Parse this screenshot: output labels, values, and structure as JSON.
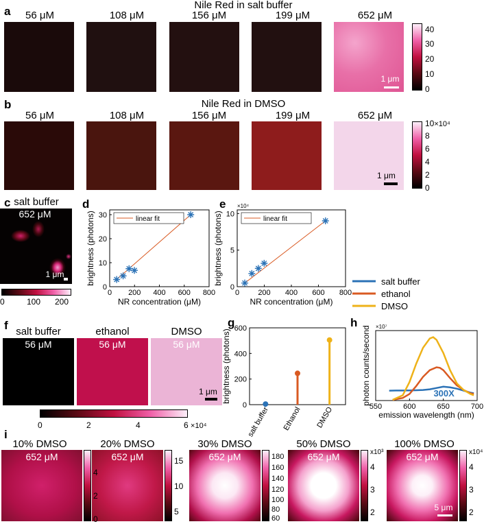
{
  "panels": {
    "a": {
      "label": "a",
      "title": "Nile Red in salt buffer",
      "conc": [
        "56 μM",
        "108 μM",
        "156 μM",
        "199 μM",
        "652 μM"
      ],
      "scalebar": "1 μm",
      "cbar_ticks": [
        "40",
        "30",
        "20",
        "10",
        "0"
      ]
    },
    "b": {
      "label": "b",
      "title": "Nile Red in DMSO",
      "conc": [
        "56 μM",
        "108 μM",
        "156 μM",
        "199 μM",
        "652 μM"
      ],
      "scalebar": "1 μm",
      "cbar_ticks": [
        "10",
        "8",
        "6",
        "4",
        "2",
        "0"
      ],
      "cbar_exp": "×10⁴"
    },
    "c": {
      "label": "c",
      "title": "salt buffer",
      "conc": "652 μM",
      "scalebar": "1 μm",
      "cbar_ticks": [
        "0",
        "100",
        "200"
      ]
    },
    "f": {
      "label": "f",
      "titles": [
        "salt buffer",
        "ethanol",
        "DMSO"
      ],
      "conc": [
        "56 μM",
        "56 μM",
        "56 μM"
      ],
      "scalebar": "1 μm",
      "cbar_ticks": [
        "0",
        "2",
        "4",
        "6"
      ],
      "cbar_exp": "×10⁴"
    },
    "i": {
      "label": "i",
      "titles": [
        "10% DMSO",
        "20% DMSO",
        "30% DMSO",
        "50% DMSO",
        "100% DMSO"
      ],
      "conc": [
        "652 μM",
        "652 μM",
        "652 μM",
        "652 μM",
        "652 μM"
      ],
      "scalebar": "5 μm",
      "cbars": [
        {
          "ticks": [
            "4",
            "2",
            "0"
          ],
          "exp": ""
        },
        {
          "ticks": [
            "15",
            "10",
            "5"
          ],
          "exp": ""
        },
        {
          "ticks": [
            "180",
            "160",
            "140",
            "120",
            "100",
            "80",
            "60"
          ],
          "exp": ""
        },
        {
          "ticks": [
            "4",
            "3",
            "2"
          ],
          "exp": "x10³"
        },
        {
          "ticks": [
            "4",
            "3",
            "2"
          ],
          "exp": "x10⁴"
        }
      ]
    }
  },
  "chart_data": [
    {
      "id": "d",
      "type": "scatter",
      "label": "d",
      "xlabel": "NR concentration (μM)",
      "ylabel": "brightness (photons)",
      "xlim": [
        0,
        800
      ],
      "ylim": [
        0,
        32
      ],
      "xticks": [
        0,
        200,
        400,
        600,
        800
      ],
      "yticks": [
        0,
        10,
        20,
        30
      ],
      "points": [
        [
          56,
          3
        ],
        [
          108,
          4.5
        ],
        [
          156,
          7.5
        ],
        [
          199,
          6.8
        ],
        [
          652,
          30
        ]
      ],
      "fit": [
        [
          56,
          3
        ],
        [
          652,
          30
        ]
      ],
      "legend": "linear fit"
    },
    {
      "id": "e",
      "type": "scatter",
      "label": "e",
      "xlabel": "NR concentration (μM)",
      "ylabel": "brightness (photons)",
      "exp": "×10⁴",
      "xlim": [
        0,
        800
      ],
      "ylim": [
        0,
        10.5
      ],
      "xticks": [
        0,
        200,
        400,
        600,
        800
      ],
      "yticks": [
        0,
        5,
        10
      ],
      "points": [
        [
          56,
          0.5
        ],
        [
          108,
          1.8
        ],
        [
          156,
          2.5
        ],
        [
          199,
          3.2
        ],
        [
          652,
          9
        ]
      ],
      "fit": [
        [
          56,
          0.5
        ],
        [
          652,
          9
        ]
      ],
      "legend": "linear fit"
    },
    {
      "id": "g",
      "type": "bar",
      "label": "g",
      "ylabel": "brightness (photons)",
      "categories": [
        "salt buffer",
        "Ethanol",
        "DMSO"
      ],
      "values": [
        5,
        245,
        505
      ],
      "colors": [
        "#2b72b6",
        "#d95a22",
        "#eeb219"
      ],
      "ylim": [
        0,
        600
      ],
      "yticks": [
        0,
        200,
        400,
        600
      ]
    },
    {
      "id": "h",
      "type": "line",
      "label": "h",
      "xlabel": "emission wavelength (nm)",
      "ylabel": "photon counts/second",
      "exp": "×10⁷",
      "xlim": [
        550,
        700
      ],
      "ylim": [
        0,
        5.3
      ],
      "xticks": [
        550,
        600,
        650,
        700
      ],
      "yticks": [],
      "annotation": "300X",
      "series": [
        {
          "name": "salt buffer",
          "color": "#2b72b6",
          "x": [
            570,
            580,
            590,
            600,
            610,
            620,
            630,
            640,
            650,
            660,
            670,
            680,
            690,
            695
          ],
          "y": [
            0.75,
            0.76,
            0.76,
            0.77,
            0.78,
            0.8,
            0.85,
            0.95,
            1.05,
            1.0,
            0.9,
            0.75,
            0.6,
            0.55
          ]
        },
        {
          "name": "ethanol",
          "color": "#d95a22",
          "x": [
            575,
            590,
            600,
            610,
            620,
            630,
            640,
            645,
            650,
            660,
            670,
            680,
            690,
            695
          ],
          "y": [
            0.05,
            0.2,
            0.5,
            1.1,
            1.8,
            2.3,
            2.52,
            2.48,
            2.3,
            1.7,
            1.15,
            0.8,
            0.55,
            0.5
          ]
        },
        {
          "name": "DMSO",
          "color": "#eeb219",
          "x": [
            575,
            590,
            600,
            610,
            620,
            630,
            635,
            640,
            650,
            660,
            670,
            680,
            690,
            695
          ],
          "y": [
            0.05,
            0.4,
            1.4,
            2.8,
            4.0,
            4.7,
            4.8,
            4.6,
            3.6,
            2.3,
            1.3,
            0.8,
            0.5,
            0.4
          ]
        }
      ]
    }
  ]
}
